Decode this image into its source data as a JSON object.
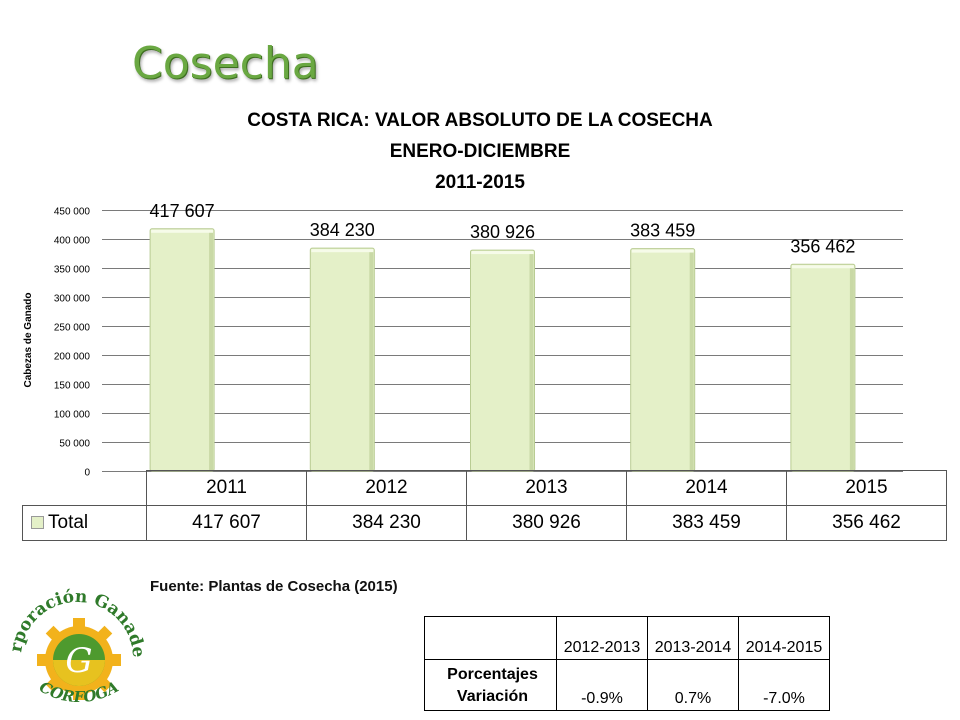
{
  "slide": {
    "title": "Cosecha"
  },
  "chart_data": {
    "type": "bar",
    "title_lines": [
      "COSTA RICA: VALOR ABSOLUTO DE LA COSECHA",
      "ENERO-DICIEMBRE",
      "2011-2015"
    ],
    "categories": [
      "2011",
      "2012",
      "2013",
      "2014",
      "2015"
    ],
    "series": [
      {
        "name": "Total",
        "values": [
          417607,
          384230,
          380926,
          383459,
          356462
        ]
      }
    ],
    "value_labels": [
      "417 607",
      "384 230",
      "380 926",
      "383 459",
      "356 462"
    ],
    "ylabel": "Cabezas de Ganado",
    "ylim": [
      0,
      450000
    ],
    "yticks": [
      0,
      50000,
      100000,
      150000,
      200000,
      250000,
      300000,
      350000,
      400000,
      450000
    ],
    "ytick_labels": [
      "0",
      "50 000",
      "100 000",
      "150 000",
      "200 000",
      "250 000",
      "300 000",
      "350 000",
      "400 000",
      "450 000"
    ],
    "grid": true,
    "bar_color": "#e4f0c8",
    "data_table": true
  },
  "source": "Fuente: Plantas de Cosecha (2015)",
  "logo": {
    "text_top": "Corporación Ganadera",
    "text_bottom": "CORFOGA"
  },
  "variation_table": {
    "headers": [
      "2012-2013",
      "2013-2014",
      "2014-2015"
    ],
    "row_label_lines": [
      "Porcentajes",
      "Variación"
    ],
    "values": [
      "-0.9%",
      "0.7%",
      "-7.0%"
    ]
  }
}
